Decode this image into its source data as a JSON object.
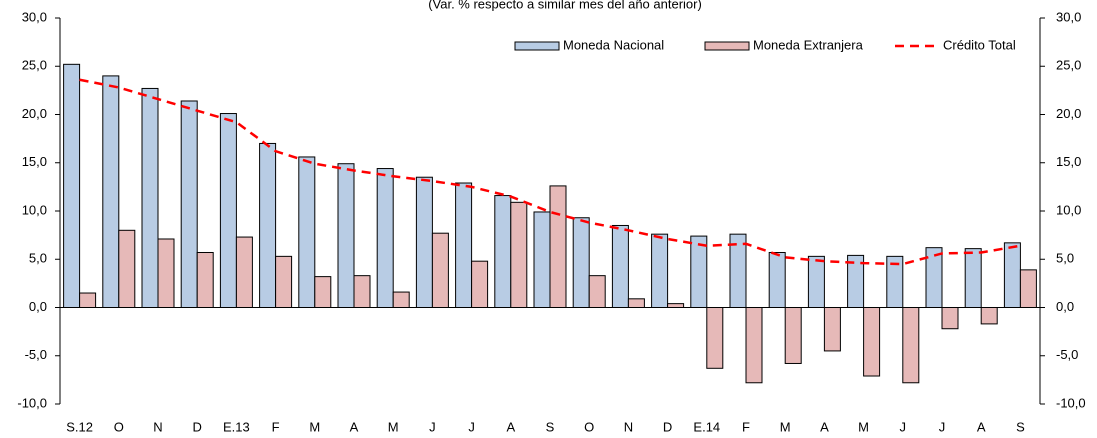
{
  "chart_data": {
    "type": "bar",
    "subtitle": "(Var. % respecto a similar mes del año anterior)",
    "categories": [
      "S.12",
      "O",
      "N",
      "D",
      "E.13",
      "F",
      "M",
      "A",
      "M",
      "J",
      "J",
      "A",
      "S",
      "O",
      "N",
      "D",
      "E.14",
      "F",
      "M",
      "A",
      "M",
      "J",
      "J",
      "A",
      "S"
    ],
    "series": [
      {
        "name": "Moneda Nacional",
        "type": "bar",
        "color": "#b8cce4",
        "values": [
          25.2,
          24.0,
          22.7,
          21.4,
          20.1,
          17.0,
          15.6,
          14.9,
          14.4,
          13.5,
          12.9,
          11.6,
          9.9,
          9.3,
          8.5,
          7.6,
          7.4,
          7.6,
          5.7,
          5.3,
          5.4,
          5.3,
          6.2,
          6.1,
          6.7
        ]
      },
      {
        "name": "Moneda Extranjera",
        "type": "bar",
        "color": "#e6b9b8",
        "values": [
          1.5,
          8.0,
          7.1,
          5.7,
          7.3,
          5.3,
          3.2,
          3.3,
          1.6,
          7.7,
          4.8,
          10.9,
          12.6,
          3.3,
          0.9,
          0.4,
          -6.3,
          -7.8,
          -5.8,
          -4.5,
          -7.1,
          -7.8,
          -2.2,
          -1.7,
          3.9
        ]
      },
      {
        "name": "Crédito Total",
        "type": "line",
        "color": "#ff0000",
        "values": [
          23.6,
          22.8,
          21.6,
          20.4,
          19.2,
          16.2,
          14.9,
          14.2,
          13.6,
          13.1,
          12.5,
          11.5,
          9.9,
          8.8,
          8.0,
          7.1,
          6.4,
          6.6,
          5.2,
          4.8,
          4.6,
          4.5,
          5.6,
          5.7,
          6.4
        ]
      }
    ],
    "ylim": [
      -10,
      30
    ],
    "yticks": [
      {
        "value": -10,
        "label": "-10,0"
      },
      {
        "value": -5,
        "label": "-5,0"
      },
      {
        "value": 0,
        "label": "0,0"
      },
      {
        "value": 5,
        "label": "5,0"
      },
      {
        "value": 10,
        "label": "10,0"
      },
      {
        "value": 15,
        "label": "15,0"
      },
      {
        "value": 20,
        "label": "20,0"
      },
      {
        "value": 25,
        "label": "25,0"
      },
      {
        "value": 30,
        "label": "30,0"
      }
    ],
    "y2lim": [
      -10,
      30
    ],
    "y2ticks": [
      {
        "value": -10,
        "label": "-10,0"
      },
      {
        "value": -5,
        "label": "-5,0"
      },
      {
        "value": 0,
        "label": "0,0"
      },
      {
        "value": 5,
        "label": "5,0"
      },
      {
        "value": 10,
        "label": "10,0"
      },
      {
        "value": 15,
        "label": "15,0"
      },
      {
        "value": 20,
        "label": "20,0"
      },
      {
        "value": 25,
        "label": "25,0"
      },
      {
        "value": 30,
        "label": "30,0"
      }
    ],
    "legend": "top-right",
    "grid": false
  }
}
